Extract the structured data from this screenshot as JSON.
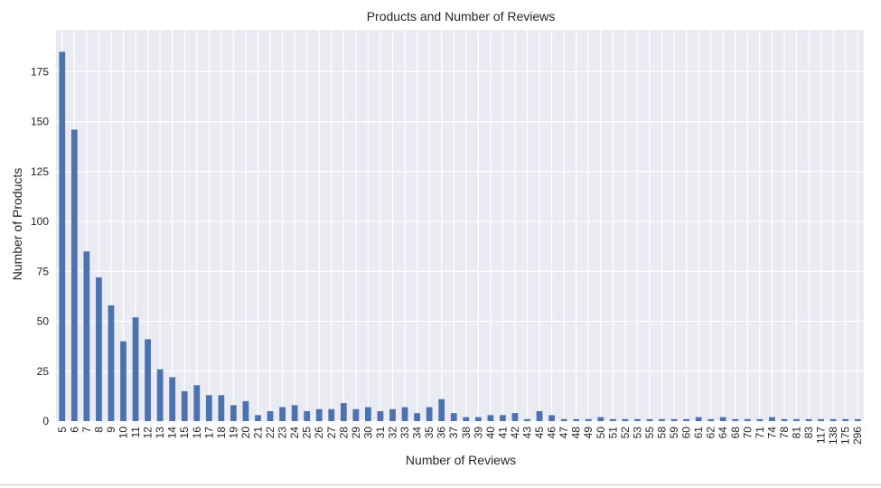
{
  "chart_data": {
    "type": "bar",
    "title": "Products and Number of Reviews",
    "xlabel": "Number of Reviews",
    "ylabel": "Number of Products",
    "ylim": [
      0,
      196
    ],
    "yticks": [
      0,
      25,
      50,
      75,
      100,
      125,
      150,
      175
    ],
    "grid": true,
    "legend": "none",
    "bar_color": "#4c72b0",
    "plot_background": "#eaeaf2",
    "grid_color": "#ffffff",
    "categories": [
      "5",
      "6",
      "7",
      "8",
      "9",
      "10",
      "11",
      "12",
      "13",
      "14",
      "15",
      "16",
      "17",
      "18",
      "19",
      "20",
      "21",
      "22",
      "23",
      "24",
      "25",
      "26",
      "27",
      "28",
      "29",
      "30",
      "31",
      "32",
      "33",
      "34",
      "35",
      "36",
      "37",
      "38",
      "39",
      "40",
      "41",
      "42",
      "43",
      "45",
      "46",
      "47",
      "48",
      "49",
      "50",
      "51",
      "52",
      "53",
      "55",
      "58",
      "59",
      "60",
      "61",
      "62",
      "64",
      "68",
      "70",
      "71",
      "74",
      "78",
      "81",
      "83",
      "117",
      "138",
      "175",
      "296"
    ],
    "values": [
      185,
      146,
      85,
      72,
      58,
      40,
      52,
      41,
      26,
      22,
      15,
      18,
      13,
      13,
      8,
      10,
      3,
      5,
      7,
      8,
      5,
      6,
      6,
      9,
      6,
      7,
      5,
      6,
      7,
      4,
      7,
      11,
      4,
      2,
      2,
      3,
      3,
      4,
      1,
      5,
      3,
      1,
      1,
      1,
      2,
      1,
      1,
      1,
      1,
      1,
      1,
      1,
      2,
      1,
      2,
      1,
      1,
      1,
      2,
      1,
      1,
      1,
      1,
      1,
      1,
      1
    ]
  }
}
